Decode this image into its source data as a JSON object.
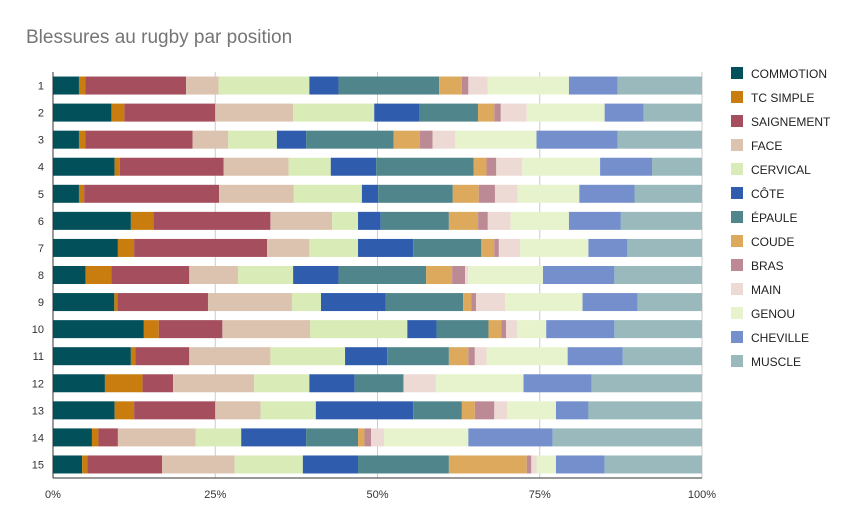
{
  "chart_data": {
    "type": "bar",
    "orientation": "horizontal",
    "stacked": "percent",
    "title": "Blessures au rugby par position",
    "categories": [
      "1",
      "2",
      "3",
      "4",
      "5",
      "6",
      "7",
      "8",
      "9",
      "10",
      "11",
      "12",
      "13",
      "14",
      "15"
    ],
    "x_ticks": [
      "0%",
      "25%",
      "50%",
      "75%",
      "100%"
    ],
    "xlim": [
      0,
      100
    ],
    "legend_position": "right",
    "grid": true,
    "series": [
      {
        "name": "COMMOTION",
        "color": "#02505a",
        "values": [
          4.0,
          9.0,
          4.0,
          9.5,
          4.0,
          12.0,
          10.0,
          5.0,
          9.5,
          14.0,
          12.0,
          8.0,
          9.5,
          6.0,
          4.5
        ]
      },
      {
        "name": "TC SIMPLE",
        "color": "#c97d0e",
        "values": [
          1.0,
          2.0,
          1.0,
          0.8,
          0.8,
          3.5,
          2.5,
          4.0,
          0.5,
          2.3,
          0.7,
          5.8,
          3.0,
          1.0,
          0.8
        ]
      },
      {
        "name": "SAIGNEMENT",
        "color": "#a54e5e",
        "values": [
          15.5,
          14.0,
          16.5,
          16.0,
          20.8,
          18.0,
          20.5,
          12.0,
          14.0,
          9.8,
          8.3,
          4.7,
          12.5,
          3.0,
          11.5
        ]
      },
      {
        "name": "FACE",
        "color": "#dcc3b0",
        "values": [
          5.0,
          12.0,
          5.5,
          10.0,
          11.5,
          9.5,
          6.5,
          7.5,
          13.0,
          13.5,
          12.5,
          12.5,
          7.0,
          12.0,
          11.2
        ]
      },
      {
        "name": "CERVICAL",
        "color": "#d9ebb6",
        "values": [
          14.0,
          12.5,
          7.5,
          6.5,
          10.5,
          4.0,
          7.5,
          8.5,
          4.5,
          15.0,
          11.5,
          8.5,
          8.5,
          7.0,
          10.5
        ]
      },
      {
        "name": "CÔTE",
        "color": "#2f5cad",
        "values": [
          4.5,
          7.0,
          4.5,
          7.0,
          2.5,
          3.5,
          8.5,
          7.0,
          10.0,
          4.5,
          6.5,
          7.0,
          15.0,
          10.0,
          8.5
        ]
      },
      {
        "name": "ÉPAULE",
        "color": "#4f858b",
        "values": [
          15.5,
          9.0,
          13.5,
          15.0,
          11.5,
          10.5,
          10.5,
          13.5,
          12.0,
          8.0,
          9.5,
          7.5,
          7.5,
          8.0,
          14.0
        ]
      },
      {
        "name": "COUDE",
        "color": "#dda95c",
        "values": [
          3.5,
          2.5,
          4.0,
          2.0,
          4.0,
          4.5,
          2.0,
          4.0,
          1.3,
          2.0,
          3.0,
          0.0,
          2.0,
          1.0,
          12.0
        ]
      },
      {
        "name": "BRAS",
        "color": "#bc8a94",
        "values": [
          1.0,
          1.0,
          2.0,
          1.5,
          2.5,
          1.5,
          0.7,
          2.0,
          0.7,
          0.7,
          1.0,
          0.0,
          3.0,
          1.0,
          0.7
        ]
      },
      {
        "name": "MAIN",
        "color": "#eedad5",
        "values": [
          3.0,
          4.0,
          3.5,
          4.0,
          3.5,
          3.5,
          3.3,
          0.5,
          4.5,
          1.7,
          1.8,
          5.0,
          2.0,
          2.0,
          0.8
        ]
      },
      {
        "name": "GENOU",
        "color": "#e6f3cd",
        "values": [
          12.5,
          12.0,
          12.5,
          12.0,
          9.5,
          9.0,
          10.5,
          11.5,
          12.0,
          4.5,
          12.5,
          13.5,
          7.5,
          13.0,
          3.0
        ]
      },
      {
        "name": "CHEVILLE",
        "color": "#748fcc",
        "values": [
          7.5,
          6.0,
          12.5,
          8.0,
          8.5,
          8.0,
          6.0,
          11.0,
          8.5,
          10.5,
          8.5,
          10.5,
          5.0,
          13.0,
          7.5
        ]
      },
      {
        "name": "MUSCLE",
        "color": "#99b9bc",
        "values": [
          13.0,
          9.0,
          13.0,
          7.7,
          10.4,
          12.5,
          11.5,
          13.5,
          10.0,
          13.5,
          12.2,
          17.0,
          17.5,
          23.0,
          15.0
        ]
      }
    ]
  }
}
